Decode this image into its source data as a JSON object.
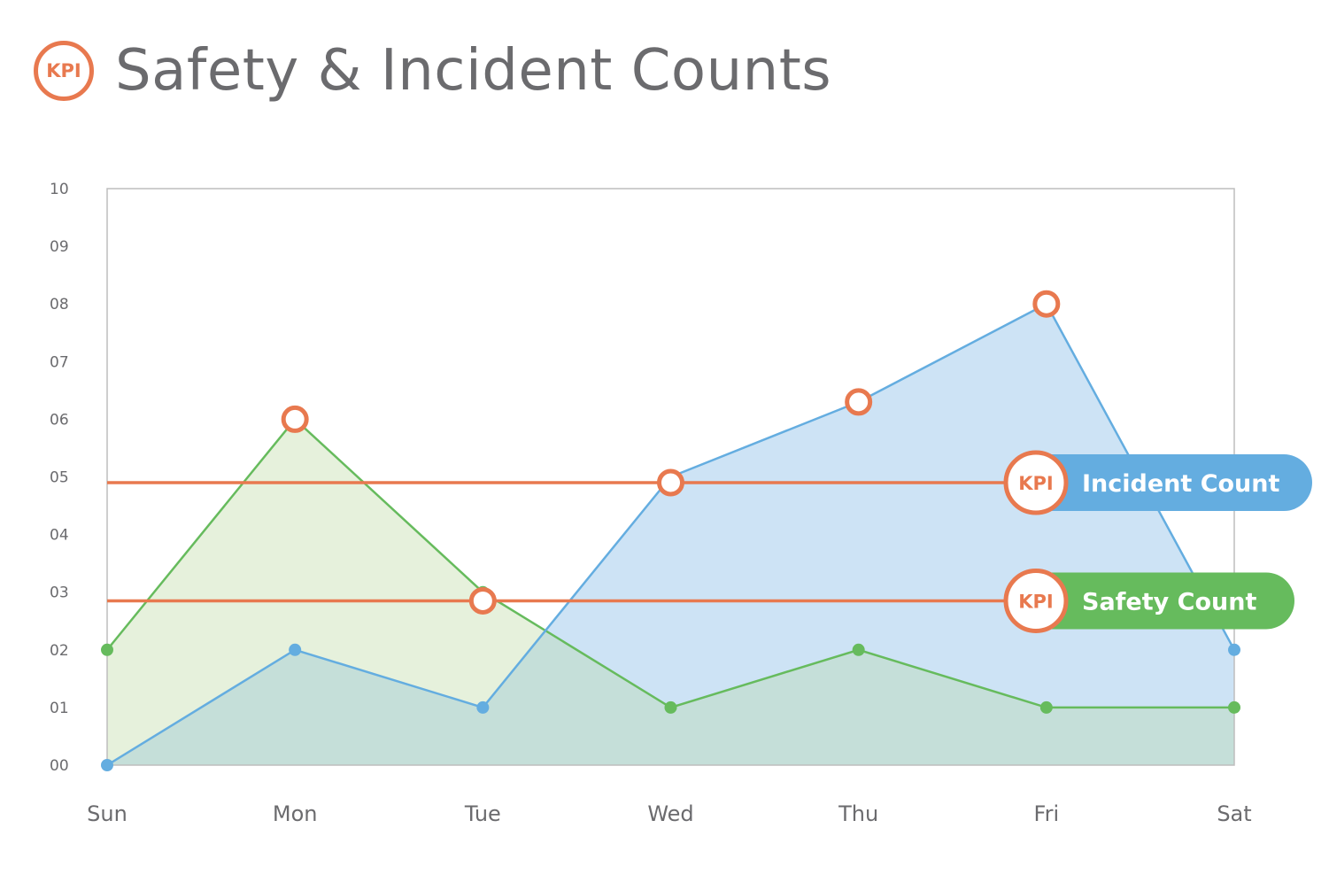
{
  "header": {
    "badge_text": "KPI",
    "title": "Safety & Incident Counts"
  },
  "colors": {
    "accent": "#e8794f",
    "incident": "#64ade0",
    "incident_fill": "#cde3f5",
    "safety": "#66bb5d",
    "safety_fill": "#e6f1dc",
    "overlap_fill": "#c5dfd9",
    "text": "#6b6b6e",
    "frame": "#bdbdbd"
  },
  "chart_data": {
    "type": "area",
    "categories": [
      "Sun",
      "Mon",
      "Tue",
      "Wed",
      "Thu",
      "Fri",
      "Sat"
    ],
    "y_ticks": [
      "00",
      "01",
      "02",
      "03",
      "04",
      "05",
      "06",
      "07",
      "08",
      "09",
      "10"
    ],
    "ylim": [
      0,
      10
    ],
    "grid": false,
    "series": [
      {
        "name": "Incident Count",
        "key": "incident",
        "values": [
          0,
          2,
          1,
          5,
          6.3,
          8,
          2
        ]
      },
      {
        "name": "Safety Count",
        "key": "safety",
        "values": [
          2,
          6,
          3,
          1,
          2,
          1,
          1
        ]
      }
    ],
    "kpi_lines": [
      {
        "label": "Incident Count",
        "badge": "KPI",
        "series": "incident",
        "value": 4.9
      },
      {
        "label": "Safety Count",
        "badge": "KPI",
        "series": "safety",
        "value": 2.85
      }
    ],
    "kpi_markers": [
      {
        "category": "Mon",
        "value": 6
      },
      {
        "category": "Tue",
        "value": 2.85
      },
      {
        "category": "Wed",
        "value": 4.9
      },
      {
        "category": "Thu",
        "value": 6.3
      },
      {
        "category": "Fri",
        "value": 8
      }
    ]
  }
}
